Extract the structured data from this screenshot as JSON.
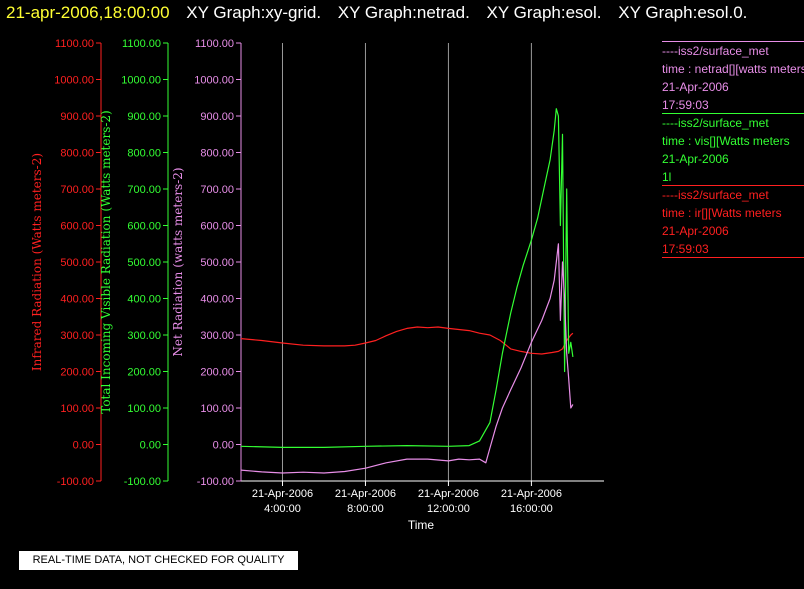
{
  "header": {
    "timestamp": "21-apr-2006,18:00:00",
    "graph_titles": [
      "XY Graph:xy-grid.",
      "XY Graph:netrad.",
      "XY Graph:esol.",
      "XY Graph:esol.0."
    ]
  },
  "colors": {
    "red": "#ff2020",
    "green": "#33ff33",
    "violet": "#e88ee8",
    "grid": "#9a9a9a",
    "axis_white": "#ffffff",
    "timestamp_yellow": "#ffff33"
  },
  "legend": [
    {
      "line1": "----iss2/surface_met",
      "line2": "time : netrad[][watts meters",
      "line3": "21-Apr-2006",
      "line4": "17:59:03",
      "color": "#e88ee8"
    },
    {
      "line1": "----iss2/surface_met",
      "line2": "time : vis[][Watts meters",
      "line3": "21-Apr-2006",
      "line4": "1l",
      "color": "#33ff33"
    },
    {
      "line1": "----iss2/surface_met",
      "line2": "time : ir[][Watts meters",
      "line3": "21-Apr-2006",
      "line4": "17:59:03",
      "color": "#ff2020"
    }
  ],
  "quality_note": "REAL-TIME DATA, NOT CHECKED FOR QUALITY",
  "chart_data": {
    "type": "line",
    "xlabel": "Time",
    "xlim_hours": [
      2.0,
      19.5
    ],
    "x_ticks": [
      {
        "hour": 4,
        "date": "21-Apr-2006",
        "time": "4:00:00"
      },
      {
        "hour": 8,
        "date": "21-Apr-2006",
        "time": "8:00:00"
      },
      {
        "hour": 12,
        "date": "21-Apr-2006",
        "time": "12:00:00"
      },
      {
        "hour": 16,
        "date": "21-Apr-2006",
        "time": "16:00:00"
      }
    ],
    "y_ticks": [
      -100,
      0,
      100,
      200,
      300,
      400,
      500,
      600,
      700,
      800,
      900,
      1000,
      1100
    ],
    "y_tick_labels": [
      "-100.00",
      "0.00",
      "100.00",
      "200.00",
      "300.00",
      "400.00",
      "500.00",
      "600.00",
      "700.00",
      "800.00",
      "900.00",
      "1000.00",
      "1100.00"
    ],
    "ylim": [
      -100,
      1100
    ],
    "axes": [
      {
        "label": "Infrared Radiation (Watts meters-2)",
        "color": "#ff2020"
      },
      {
        "label": "Total Incoming Visible Radiation (Watts meters-2)",
        "color": "#33ff33"
      },
      {
        "label": "Net Radiation (watts meters-2)",
        "color": "#e88ee8"
      }
    ],
    "series": [
      {
        "color": "#ff2020",
        "x_hours": [
          2.0,
          3.0,
          4.0,
          5.0,
          6.0,
          7.0,
          7.5,
          8.0,
          8.5,
          9.0,
          9.5,
          10.0,
          10.5,
          11.0,
          11.5,
          12.0,
          12.5,
          13.0,
          13.5,
          14.0,
          14.5,
          15.0,
          15.5,
          16.0,
          16.5,
          17.0,
          17.3,
          17.5,
          17.7,
          17.9,
          18.0
        ],
        "y": [
          290,
          285,
          278,
          272,
          270,
          270,
          272,
          278,
          285,
          298,
          310,
          318,
          322,
          320,
          322,
          318,
          315,
          312,
          305,
          300,
          285,
          262,
          255,
          250,
          248,
          252,
          255,
          262,
          285,
          300,
          305
        ]
      },
      {
        "color": "#33ff33",
        "x_hours": [
          2.0,
          4.0,
          6.0,
          8.0,
          10.0,
          12.0,
          13.0,
          13.5,
          14.0,
          14.3,
          14.6,
          15.0,
          15.3,
          15.6,
          16.0,
          16.3,
          16.6,
          16.9,
          17.1,
          17.2,
          17.3,
          17.4,
          17.5,
          17.6,
          17.7,
          17.8,
          17.9,
          18.0
        ],
        "y": [
          -5,
          -8,
          -8,
          -5,
          -3,
          -5,
          -3,
          10,
          60,
          150,
          250,
          360,
          430,
          490,
          560,
          620,
          700,
          780,
          860,
          920,
          900,
          600,
          850,
          200,
          700,
          250,
          280,
          240
        ]
      },
      {
        "color": "#e88ee8",
        "x_hours": [
          2.0,
          3.0,
          4.0,
          5.0,
          6.0,
          7.0,
          8.0,
          9.0,
          10.0,
          11.0,
          12.0,
          12.5,
          13.0,
          13.5,
          13.8,
          14.0,
          14.3,
          14.6,
          15.0,
          15.5,
          16.0,
          16.5,
          16.9,
          17.1,
          17.3,
          17.4,
          17.5,
          17.6,
          17.7,
          17.8,
          17.9,
          18.0
        ],
        "y": [
          -70,
          -75,
          -78,
          -76,
          -78,
          -74,
          -65,
          -50,
          -40,
          -40,
          -45,
          -40,
          -42,
          -40,
          -50,
          -10,
          50,
          100,
          150,
          210,
          280,
          340,
          400,
          450,
          550,
          340,
          500,
          400,
          250,
          180,
          100,
          110
        ]
      }
    ]
  }
}
